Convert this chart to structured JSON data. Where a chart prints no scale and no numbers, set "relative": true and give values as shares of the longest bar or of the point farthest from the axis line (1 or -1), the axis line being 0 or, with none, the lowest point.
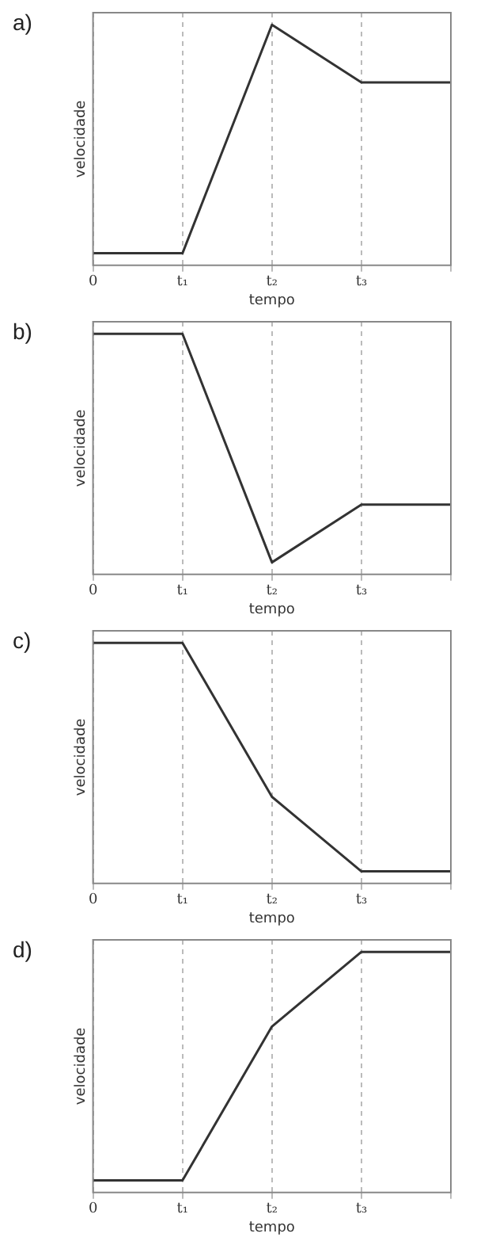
{
  "chart_data": [
    {
      "type": "line",
      "title": "a)",
      "xlabel": "tempo",
      "ylabel": "velocidade",
      "relative": true,
      "grid": "x",
      "color": "#333333",
      "categories": [
        "0",
        "t₁",
        "t₂",
        "t₃",
        null
      ],
      "values": [
        0.05,
        0.05,
        1,
        0.76,
        0.76
      ]
    },
    {
      "type": "line",
      "title": "b)",
      "xlabel": "tempo",
      "ylabel": "velocidade",
      "relative": true,
      "grid": "x",
      "color": "#333333",
      "categories": [
        "0",
        "t₁",
        "t₂",
        "t₃",
        null
      ],
      "values": [
        1,
        1,
        0.05,
        0.29,
        0.29
      ]
    },
    {
      "type": "line",
      "title": "c)",
      "xlabel": "tempo",
      "ylabel": "velocidade",
      "relative": true,
      "grid": "x",
      "color": "#333333",
      "categories": [
        "0",
        "t₁",
        "t₂",
        "t₃",
        null
      ],
      "values": [
        1,
        1,
        0.36,
        0.05,
        0.05
      ]
    },
    {
      "type": "line",
      "title": "d)",
      "xlabel": "tempo",
      "ylabel": "velocidade",
      "relative": true,
      "grid": "x",
      "color": "#333333",
      "categories": [
        "0",
        "t₁",
        "t₂",
        "t₃",
        null
      ],
      "values": [
        0.05,
        0.05,
        0.69,
        1,
        1
      ]
    }
  ]
}
